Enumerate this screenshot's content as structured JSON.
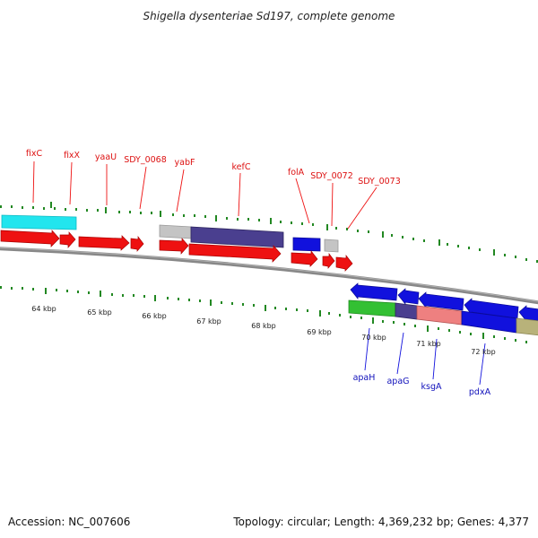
{
  "title": "Shigella dysenteriae Sd197, complete genome",
  "footer": {
    "accession": "Accession: NC_007606",
    "summary": "Topology: circular; Length: 4,369,232 bp; Genes: 4,377"
  },
  "scale": {
    "ticks": [
      "64 kbp",
      "65 kbp",
      "66 kbp",
      "67 kbp",
      "68 kbp",
      "69 kbp",
      "70 kbp",
      "71 kbp",
      "72 kbp"
    ]
  },
  "gene_labels": {
    "forward": [
      "fixC",
      "fixX",
      "yaaU",
      "SDY_0068",
      "yabF",
      "kefC",
      "folA",
      "SDY_0072",
      "SDY_0073"
    ],
    "reverse": [
      "apaH",
      "apaG",
      "ksgA",
      "pdxA"
    ]
  },
  "colors": {
    "forward_gene": "#ee1111",
    "reverse_gene": "#1111dd",
    "cyan_feature": "#22e5ee",
    "gray_feature": "#c0c0c0",
    "purple_feature": "#4a3f8f",
    "green_feature": "#33c033",
    "salmon_feature": "#ee8080",
    "olive_feature": "#b8b27a",
    "backbone": "#808080",
    "tick_mark": "#228822",
    "forward_label": "#dd1111",
    "reverse_label": "#1111bb"
  }
}
